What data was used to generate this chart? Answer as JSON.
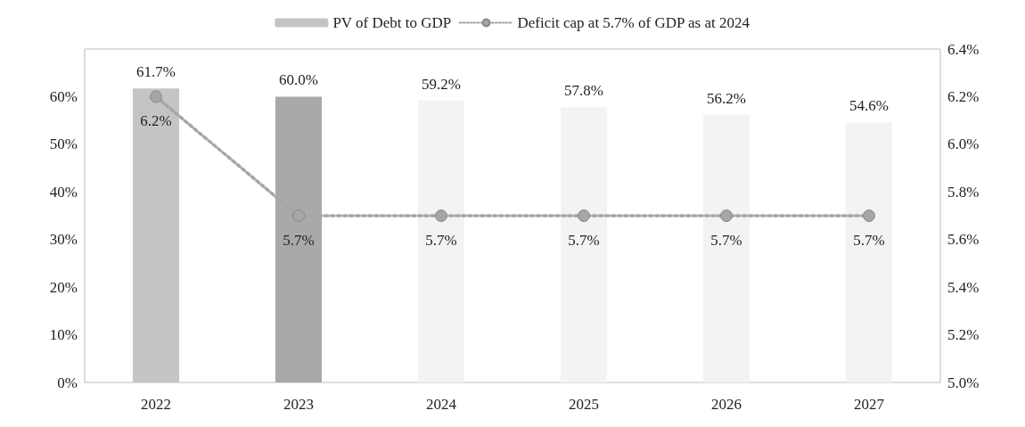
{
  "chart_data": {
    "type": "bar",
    "categories": [
      "2022",
      "2023",
      "2024",
      "2025",
      "2026",
      "2027"
    ],
    "series": [
      {
        "name": "PV of Debt to GDP",
        "color": "#c4c4c4",
        "colors": [
          "#c4c4c4",
          "#a9a9a9",
          "#f3f3f3",
          "#f3f3f3",
          "#f3f3f3",
          "#f3f3f3"
        ],
        "values": [
          61.7,
          60.0,
          59.2,
          57.8,
          56.2,
          54.6
        ],
        "value_labels": [
          "61.7%",
          "60.0%",
          "59.2%",
          "57.8%",
          "56.2%",
          "54.6%"
        ]
      },
      {
        "name": "Deficit cap at 5.7% of GDP as at 2024",
        "type": "line",
        "axis": "y2",
        "color": "#a6a6a6",
        "values": [
          6.2,
          5.7,
          5.7,
          5.7,
          5.7,
          5.7
        ],
        "value_labels": [
          "6.2%",
          "5.7%",
          "5.7%",
          "5.7%",
          "5.7%",
          "5.7%"
        ],
        "marker": "circle",
        "line_style": "dotted"
      }
    ],
    "ylim": [
      0,
      70
    ],
    "yticks": [
      {
        "value": 0,
        "label": "0%"
      },
      {
        "value": 10,
        "label": "10%"
      },
      {
        "value": 20,
        "label": "20%"
      },
      {
        "value": 30,
        "label": "30%"
      },
      {
        "value": 40,
        "label": "40%"
      },
      {
        "value": 50,
        "label": "50%"
      },
      {
        "value": 60,
        "label": "60%"
      }
    ],
    "y2lim": [
      5.0,
      6.4
    ],
    "y2ticks": [
      {
        "value": 5.0,
        "label": "5.0%"
      },
      {
        "value": 5.2,
        "label": "5.2%"
      },
      {
        "value": 5.4,
        "label": "5.4%"
      },
      {
        "value": 5.6,
        "label": "5.6%"
      },
      {
        "value": 5.8,
        "label": "5.8%"
      },
      {
        "value": 6.0,
        "label": "6.0%"
      },
      {
        "value": 6.2,
        "label": "6.2%"
      },
      {
        "value": 6.4,
        "label": "6.4%"
      }
    ],
    "grid": false,
    "legend": "top"
  }
}
